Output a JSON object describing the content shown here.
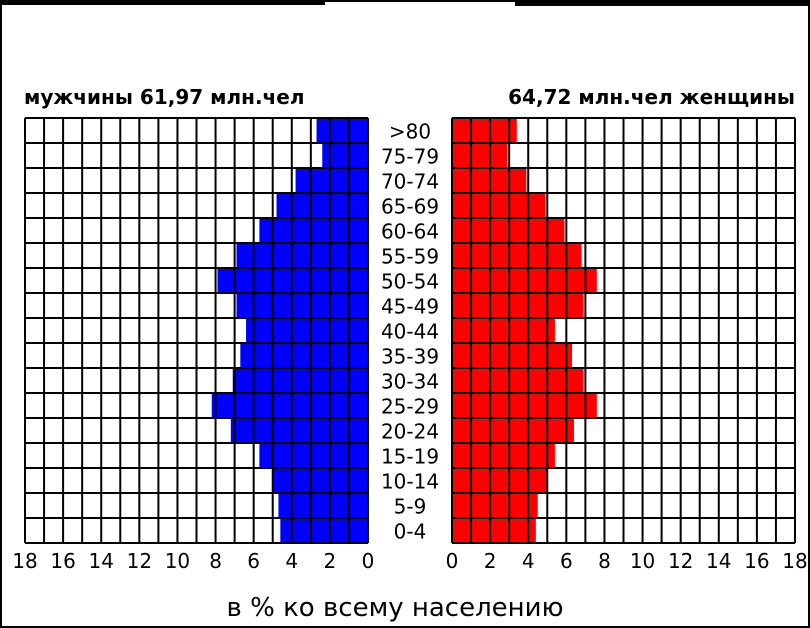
{
  "chart_data": {
    "type": "bar",
    "left_title": "мужчины 61,97 млн.чел",
    "right_title": "64,72 млн.чел женщины",
    "xlabel": "в % ко всему населению",
    "categories": [
      ">80",
      "75-79",
      "70-74",
      "65-69",
      "60-64",
      "55-59",
      "50-54",
      "45-49",
      "40-44",
      "35-39",
      "30-34",
      "25-29",
      "20-24",
      "15-19",
      "10-14",
      "5-9",
      "0-4"
    ],
    "xlim": [
      0,
      18
    ],
    "x_ticks": [
      "18",
      "16",
      "14",
      "12",
      "10",
      "8",
      "6",
      "4",
      "2",
      "0"
    ],
    "x_ticks_right": [
      "0",
      "2",
      "4",
      "6",
      "8",
      "10",
      "12",
      "14",
      "16",
      "18"
    ],
    "grid": true,
    "series": [
      {
        "name": "мужчины",
        "color": "#0000ff",
        "values": [
          2.7,
          2.4,
          3.8,
          4.8,
          5.7,
          6.9,
          7.9,
          6.9,
          6.4,
          6.7,
          7.1,
          8.2,
          7.2,
          5.7,
          5.0,
          4.7,
          4.6
        ]
      },
      {
        "name": "женщины",
        "color": "#ff0000",
        "values": [
          3.4,
          2.9,
          3.9,
          4.9,
          5.9,
          6.8,
          7.6,
          6.9,
          5.4,
          6.3,
          6.9,
          7.6,
          6.4,
          5.4,
          5.0,
          4.5,
          4.4
        ]
      }
    ]
  }
}
